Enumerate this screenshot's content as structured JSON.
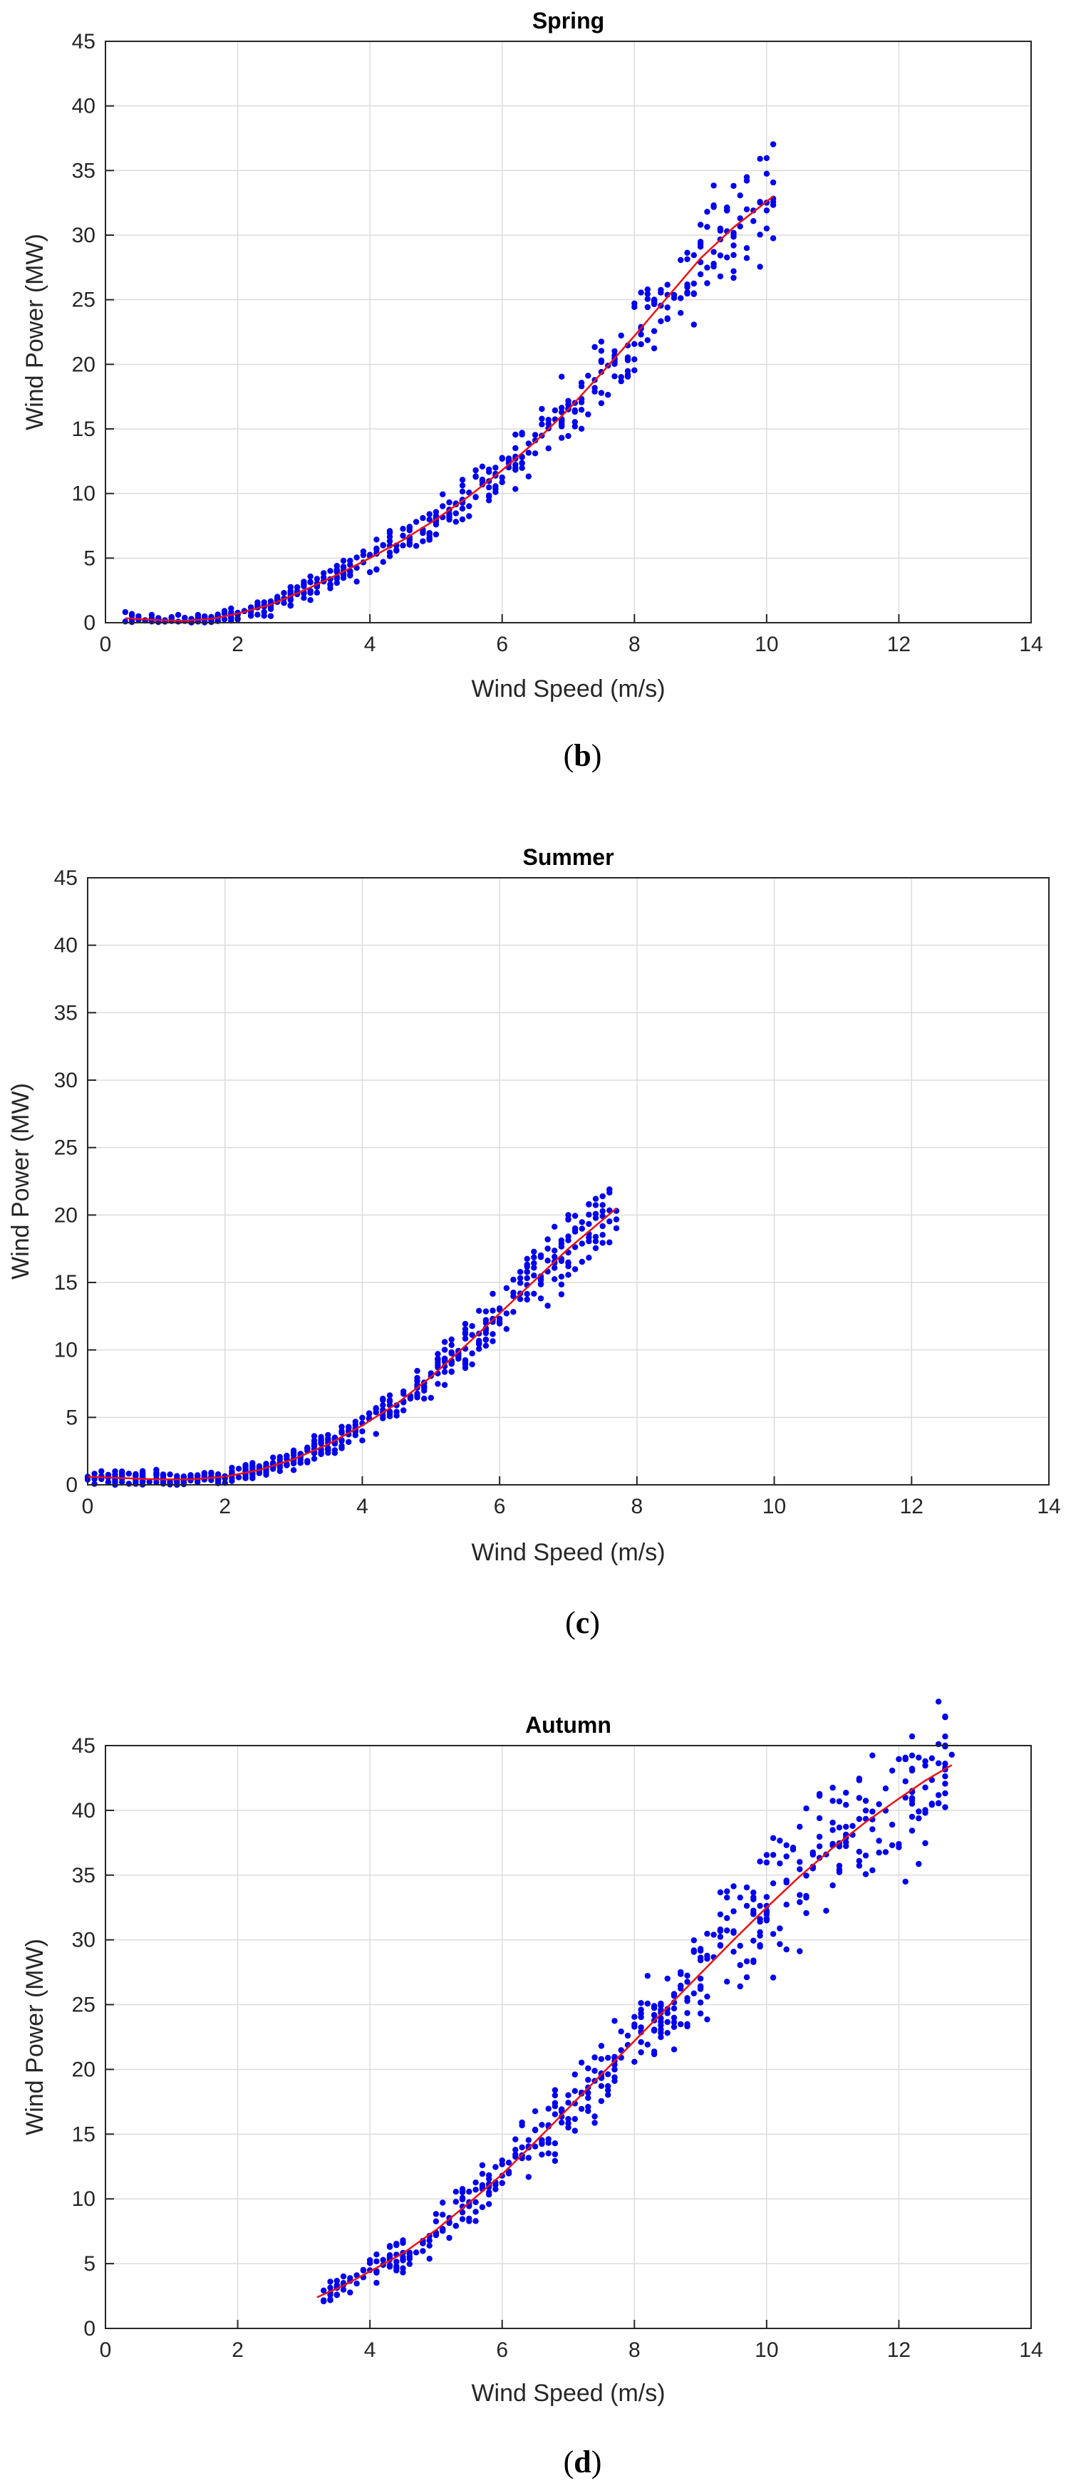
{
  "colors": {
    "points": "#0000ee",
    "fit_line": "#ee1111",
    "grid": "#dcdcdc",
    "axes": "#262626"
  },
  "chart_data": [
    {
      "type": "scatter",
      "title": "Spring",
      "xlabel": "Wind Speed (m/s)",
      "ylabel": "Wind Power (MW)",
      "xlim": [
        0,
        14
      ],
      "ylim": [
        0,
        45
      ],
      "xticks": [
        0,
        2,
        4,
        6,
        8,
        10,
        12,
        14
      ],
      "yticks": [
        0,
        5,
        10,
        15,
        20,
        25,
        30,
        35,
        40,
        45
      ],
      "grid": true,
      "caption": {
        "open": "(",
        "letter": "b",
        "close": ")"
      },
      "point_range": [
        0.3,
        10.1
      ],
      "fit_curve": [
        [
          0.3,
          0.35
        ],
        [
          0.8,
          0.2
        ],
        [
          1.2,
          0.15
        ],
        [
          1.6,
          0.3
        ],
        [
          2.0,
          0.7
        ],
        [
          2.5,
          1.4
        ],
        [
          3.0,
          2.5
        ],
        [
          3.5,
          3.7
        ],
        [
          4.0,
          5.0
        ],
        [
          4.5,
          6.4
        ],
        [
          5.0,
          8.0
        ],
        [
          5.5,
          9.8
        ],
        [
          6.0,
          11.8
        ],
        [
          6.5,
          14.0
        ],
        [
          7.0,
          16.5
        ],
        [
          7.5,
          19.3
        ],
        [
          8.0,
          22.2
        ],
        [
          8.5,
          25.2
        ],
        [
          9.0,
          28.2
        ],
        [
          9.5,
          30.6
        ],
        [
          10.1,
          33.0
        ]
      ]
    },
    {
      "type": "scatter",
      "title": "Summer",
      "xlabel": "Wind Speed (m/s)",
      "ylabel": "Wind Power (MW)",
      "xlim": [
        0,
        14
      ],
      "ylim": [
        0,
        45
      ],
      "xticks": [
        0,
        2,
        4,
        6,
        8,
        10,
        12,
        14
      ],
      "yticks": [
        0,
        5,
        10,
        15,
        20,
        25,
        30,
        35,
        40,
        45
      ],
      "grid": true,
      "caption": {
        "open": "(",
        "letter": "c",
        "close": ")"
      },
      "point_range": [
        0.0,
        7.7
      ],
      "fit_curve": [
        [
          0.0,
          0.6
        ],
        [
          0.5,
          0.5
        ],
        [
          1.0,
          0.4
        ],
        [
          1.5,
          0.4
        ],
        [
          2.0,
          0.6
        ],
        [
          2.5,
          1.1
        ],
        [
          3.0,
          1.9
        ],
        [
          3.5,
          3.0
        ],
        [
          4.0,
          4.4
        ],
        [
          4.5,
          6.0
        ],
        [
          5.0,
          8.0
        ],
        [
          5.5,
          10.3
        ],
        [
          6.0,
          12.7
        ],
        [
          6.5,
          15.1
        ],
        [
          7.0,
          17.5
        ],
        [
          7.7,
          20.5
        ]
      ]
    },
    {
      "type": "scatter",
      "title": "Autumn",
      "xlabel": "Wind Speed (m/s)",
      "ylabel": "Wind Power (MW)",
      "xlim": [
        0,
        14
      ],
      "ylim": [
        0,
        45
      ],
      "xticks": [
        0,
        2,
        4,
        6,
        8,
        10,
        12,
        14
      ],
      "yticks": [
        0,
        5,
        10,
        15,
        20,
        25,
        30,
        35,
        40,
        45
      ],
      "grid": true,
      "caption": {
        "open": "(",
        "letter": "d",
        "close": ")"
      },
      "point_range": [
        3.2,
        12.8
      ],
      "fit_curve": [
        [
          3.2,
          2.4
        ],
        [
          3.6,
          3.3
        ],
        [
          4.0,
          4.4
        ],
        [
          4.5,
          5.8
        ],
        [
          5.0,
          7.6
        ],
        [
          5.5,
          9.7
        ],
        [
          6.0,
          11.9
        ],
        [
          6.5,
          14.4
        ],
        [
          7.0,
          17.0
        ],
        [
          7.5,
          19.6
        ],
        [
          8.0,
          22.2
        ],
        [
          8.5,
          24.8
        ],
        [
          9.0,
          27.4
        ],
        [
          9.5,
          30.0
        ],
        [
          10.0,
          32.5
        ],
        [
          10.5,
          34.9
        ],
        [
          11.0,
          37.1
        ],
        [
          11.5,
          39.1
        ],
        [
          12.0,
          40.9
        ],
        [
          12.4,
          42.3
        ],
        [
          12.8,
          43.5
        ]
      ]
    }
  ]
}
